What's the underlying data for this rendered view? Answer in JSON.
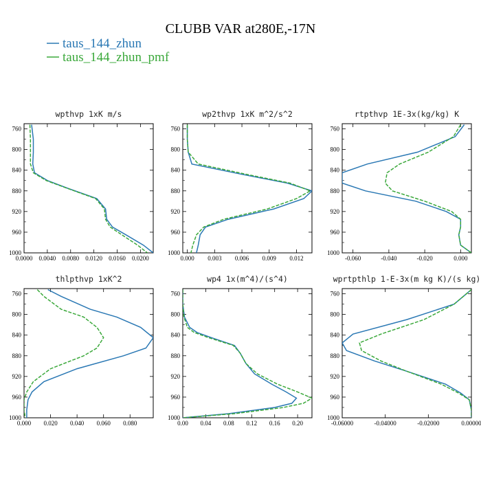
{
  "figure": {
    "title": "CLUBB VAR at280E,-17N",
    "legend": [
      {
        "label": "taus_144_zhun",
        "color": "#2a78b4"
      },
      {
        "label": "taus_144_zhun_pmf",
        "color": "#3aa83a"
      }
    ]
  },
  "chart_data": [
    {
      "type": "line",
      "title": "wpthvp  1xK m/s",
      "ylim": [
        1000,
        750
      ],
      "y_ticks": [
        "760",
        "800",
        "840",
        "880",
        "920",
        "960",
        "1000"
      ],
      "xlim": [
        0,
        0.0222
      ],
      "x_ticks": [
        "0.0000",
        "0.0040",
        "0.0080",
        "0.0120",
        "0.0160",
        "0.0200"
      ],
      "x_tick_values": [
        0,
        0.004,
        0.008,
        0.012,
        0.016,
        0.02
      ],
      "series": [
        {
          "name": "taus_144_zhun",
          "color": "#2a78b4",
          "dashed": false,
          "points": [
            [
              0.0013,
              752
            ],
            [
              0.0016,
              780
            ],
            [
              0.0016,
              805
            ],
            [
              0.0015,
              828
            ],
            [
              0.0018,
              845
            ],
            [
              0.004,
              860
            ],
            [
              0.0075,
              875
            ],
            [
              0.0125,
              895
            ],
            [
              0.014,
              915
            ],
            [
              0.0142,
              935
            ],
            [
              0.0152,
              950
            ],
            [
              0.0175,
              965
            ],
            [
              0.0205,
              985
            ],
            [
              0.0222,
              1000
            ]
          ]
        },
        {
          "name": "taus_144_zhun_pmf",
          "color": "#3aa83a",
          "dashed": true,
          "points": [
            [
              0.001,
              752
            ],
            [
              0.0011,
              780
            ],
            [
              0.0011,
              805
            ],
            [
              0.0011,
              828
            ],
            [
              0.0016,
              845
            ],
            [
              0.0038,
              860
            ],
            [
              0.0074,
              875
            ],
            [
              0.0123,
              895
            ],
            [
              0.0138,
              915
            ],
            [
              0.014,
              935
            ],
            [
              0.0148,
              950
            ],
            [
              0.0168,
              965
            ],
            [
              0.0195,
              985
            ],
            [
              0.0212,
              1000
            ]
          ]
        }
      ]
    },
    {
      "type": "line",
      "title": "wp2thvp  1xK m^2/s^2",
      "ylim": [
        1000,
        750
      ],
      "y_ticks": [
        "760",
        "800",
        "840",
        "880",
        "920",
        "960",
        "1000"
      ],
      "xlim": [
        -0.0005,
        0.0137
      ],
      "x_ticks": [
        "0.000",
        "0.003",
        "0.006",
        "0.009",
        "0.012"
      ],
      "x_tick_values": [
        0,
        0.003,
        0.006,
        0.009,
        0.012
      ],
      "series": [
        {
          "name": "taus_144_zhun",
          "color": "#2a78b4",
          "dashed": false,
          "points": [
            [
              0.0,
              752
            ],
            [
              0.0,
              780
            ],
            [
              0.0001,
              805
            ],
            [
              0.0005,
              828
            ],
            [
              0.006,
              848
            ],
            [
              0.011,
              865
            ],
            [
              0.0137,
              880
            ],
            [
              0.0128,
              895
            ],
            [
              0.0095,
              915
            ],
            [
              0.0045,
              935
            ],
            [
              0.002,
              950
            ],
            [
              0.0014,
              965
            ],
            [
              0.0012,
              985
            ],
            [
              0.001,
              1000
            ]
          ]
        },
        {
          "name": "taus_144_zhun_pmf",
          "color": "#3aa83a",
          "dashed": true,
          "points": [
            [
              0.0,
              752
            ],
            [
              0.0,
              780
            ],
            [
              0.0001,
              805
            ],
            [
              0.0012,
              828
            ],
            [
              0.0065,
              848
            ],
            [
              0.0113,
              865
            ],
            [
              0.0135,
              880
            ],
            [
              0.012,
              895
            ],
            [
              0.0088,
              915
            ],
            [
              0.004,
              935
            ],
            [
              0.0018,
              950
            ],
            [
              0.001,
              965
            ],
            [
              0.0006,
              985
            ],
            [
              0.0004,
              1000
            ]
          ]
        }
      ]
    },
    {
      "type": "line",
      "title": "rtpthvp  1E-3x(kg/kg) K",
      "ylim": [
        1000,
        750
      ],
      "y_ticks": [
        "760",
        "800",
        "840",
        "880",
        "920",
        "960",
        "1000"
      ],
      "xlim": [
        -0.066,
        0.006
      ],
      "x_ticks": [
        "-0.060",
        "-0.040",
        "-0.020",
        "0.000"
      ],
      "x_tick_values": [
        -0.06,
        -0.04,
        -0.02,
        0
      ],
      "series": [
        {
          "name": "taus_144_zhun",
          "color": "#2a78b4",
          "dashed": false,
          "points": [
            [
              0.002,
              752
            ],
            [
              -0.003,
              775
            ],
            [
              -0.024,
              805
            ],
            [
              -0.052,
              828
            ],
            [
              -0.066,
              845
            ],
            [
              -0.066,
              865
            ],
            [
              -0.053,
              880
            ],
            [
              -0.025,
              900
            ],
            [
              -0.008,
              920
            ],
            [
              0.0,
              935
            ],
            [
              0.0,
              950
            ],
            [
              -0.001,
              965
            ],
            [
              0.0,
              985
            ],
            [
              0.006,
              1000
            ]
          ]
        },
        {
          "name": "taus_144_zhun_pmf",
          "color": "#3aa83a",
          "dashed": true,
          "points": [
            [
              0.0,
              752
            ],
            [
              -0.004,
              775
            ],
            [
              -0.018,
              805
            ],
            [
              -0.034,
              828
            ],
            [
              -0.041,
              845
            ],
            [
              -0.042,
              865
            ],
            [
              -0.038,
              880
            ],
            [
              -0.02,
              900
            ],
            [
              -0.005,
              920
            ],
            [
              0.0,
              935
            ],
            [
              0.0,
              950
            ],
            [
              -0.001,
              965
            ],
            [
              0.0,
              985
            ],
            [
              0.006,
              1000
            ]
          ]
        }
      ]
    },
    {
      "type": "line",
      "title": "thlpthvp  1xK^2",
      "ylim": [
        1000,
        750
      ],
      "y_ticks": [
        "760",
        "800",
        "840",
        "880",
        "920",
        "960",
        "1000"
      ],
      "xlim": [
        0,
        0.0975
      ],
      "x_ticks": [
        "0.000",
        "0.020",
        "0.040",
        "0.060",
        "0.080"
      ],
      "x_tick_values": [
        0,
        0.02,
        0.04,
        0.06,
        0.08
      ],
      "series": [
        {
          "name": "taus_144_zhun",
          "color": "#2a78b4",
          "dashed": false,
          "points": [
            [
              0.018,
              752
            ],
            [
              0.028,
              765
            ],
            [
              0.05,
              790
            ],
            [
              0.07,
              805
            ],
            [
              0.088,
              825
            ],
            [
              0.0975,
              845
            ],
            [
              0.092,
              865
            ],
            [
              0.075,
              880
            ],
            [
              0.04,
              905
            ],
            [
              0.015,
              930
            ],
            [
              0.006,
              950
            ],
            [
              0.003,
              965
            ],
            [
              0.002,
              985
            ],
            [
              0.002,
              1000
            ]
          ]
        },
        {
          "name": "taus_144_zhun_pmf",
          "color": "#3aa83a",
          "dashed": true,
          "points": [
            [
              0.01,
              752
            ],
            [
              0.015,
              765
            ],
            [
              0.028,
              790
            ],
            [
              0.045,
              805
            ],
            [
              0.055,
              825
            ],
            [
              0.06,
              845
            ],
            [
              0.055,
              865
            ],
            [
              0.045,
              880
            ],
            [
              0.02,
              905
            ],
            [
              0.007,
              930
            ],
            [
              0.002,
              950
            ],
            [
              0.0,
              965
            ],
            [
              0.0,
              985
            ],
            [
              0.001,
              1000
            ]
          ]
        }
      ]
    },
    {
      "type": "line",
      "title": "wp4  1x(m^4)/(s^4)",
      "ylim": [
        1000,
        750
      ],
      "y_ticks": [
        "760",
        "800",
        "840",
        "880",
        "920",
        "960",
        "1000"
      ],
      "xlim": [
        0,
        0.225
      ],
      "x_ticks": [
        "0.00",
        "0.04",
        "0.08",
        "0.12",
        "0.16",
        "0.20"
      ],
      "x_tick_values": [
        0,
        0.04,
        0.08,
        0.12,
        0.16,
        0.2
      ],
      "series": [
        {
          "name": "taus_144_zhun",
          "color": "#2a78b4",
          "dashed": false,
          "points": [
            [
              0.0,
              752
            ],
            [
              0.0,
              780
            ],
            [
              0.003,
              805
            ],
            [
              0.012,
              825
            ],
            [
              0.025,
              835
            ],
            [
              0.05,
              845
            ],
            [
              0.09,
              860
            ],
            [
              0.1,
              875
            ],
            [
              0.11,
              895
            ],
            [
              0.125,
              915
            ],
            [
              0.155,
              935
            ],
            [
              0.18,
              950
            ],
            [
              0.198,
              962
            ],
            [
              0.19,
              972
            ],
            [
              0.16,
              980
            ],
            [
              0.08,
              992
            ],
            [
              0.0,
              1000
            ]
          ]
        },
        {
          "name": "taus_144_zhun_pmf",
          "color": "#3aa83a",
          "dashed": true,
          "points": [
            [
              0.0,
              752
            ],
            [
              0.0,
              780
            ],
            [
              0.002,
              805
            ],
            [
              0.008,
              825
            ],
            [
              0.02,
              835
            ],
            [
              0.045,
              845
            ],
            [
              0.088,
              860
            ],
            [
              0.1,
              875
            ],
            [
              0.11,
              895
            ],
            [
              0.13,
              915
            ],
            [
              0.165,
              935
            ],
            [
              0.2,
              950
            ],
            [
              0.225,
              962
            ],
            [
              0.21,
              972
            ],
            [
              0.175,
              980
            ],
            [
              0.09,
              992
            ],
            [
              0.0,
              1000
            ]
          ]
        }
      ]
    },
    {
      "type": "line",
      "title": "wprtpthlp  1-E-3x(m kg K)/(s kg)",
      "ylim": [
        1000,
        750
      ],
      "y_ticks": [
        "760",
        "800",
        "840",
        "880",
        "920",
        "960",
        "1000"
      ],
      "xlim": [
        -0.06,
        0.0
      ],
      "x_ticks": [
        "-0.06000",
        "-0.04000",
        "-0.02000",
        "0.00000"
      ],
      "x_tick_values": [
        -0.06,
        -0.04,
        -0.02,
        0
      ],
      "series": [
        {
          "name": "taus_144_zhun",
          "color": "#2a78b4",
          "dashed": false,
          "points": [
            [
              0.0,
              752
            ],
            [
              -0.008,
              780
            ],
            [
              -0.03,
              810
            ],
            [
              -0.055,
              838
            ],
            [
              -0.06,
              855
            ],
            [
              -0.058,
              870
            ],
            [
              -0.045,
              890
            ],
            [
              -0.03,
              910
            ],
            [
              -0.012,
              935
            ],
            [
              -0.005,
              952
            ],
            [
              -0.001,
              965
            ],
            [
              0.0,
              985
            ],
            [
              0.0,
              1000
            ]
          ]
        },
        {
          "name": "taus_144_zhun_pmf",
          "color": "#3aa83a",
          "dashed": true,
          "points": [
            [
              0.0,
              752
            ],
            [
              -0.008,
              780
            ],
            [
              -0.022,
              810
            ],
            [
              -0.042,
              838
            ],
            [
              -0.052,
              855
            ],
            [
              -0.051,
              870
            ],
            [
              -0.042,
              890
            ],
            [
              -0.03,
              910
            ],
            [
              -0.014,
              935
            ],
            [
              -0.006,
              952
            ],
            [
              -0.001,
              965
            ],
            [
              0.0,
              985
            ],
            [
              0.0,
              1000
            ]
          ]
        }
      ]
    }
  ]
}
